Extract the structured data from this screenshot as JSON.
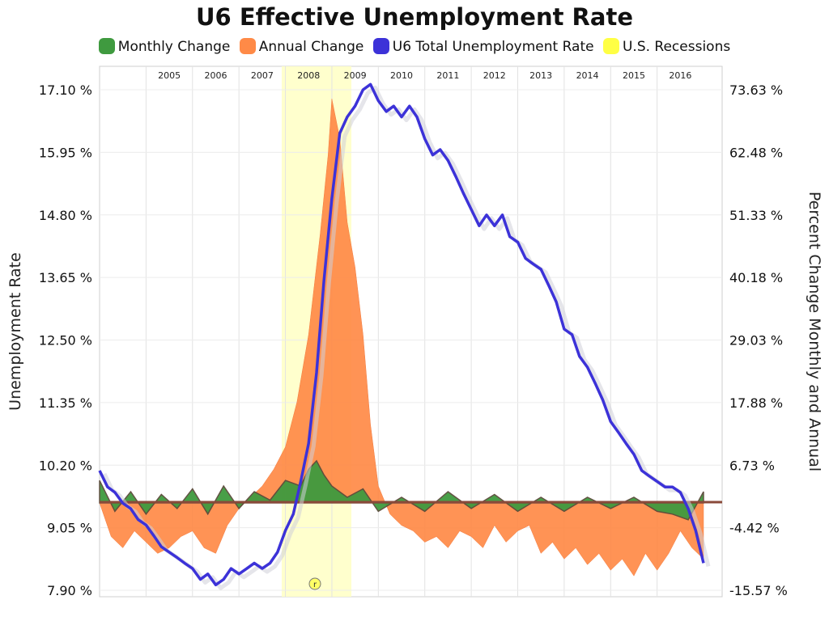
{
  "chart_data": {
    "type": "line",
    "title": "U6 Effective Unemployment Rate",
    "legend_position": "top",
    "legend": [
      {
        "name": "Monthly Change",
        "color": "#3f9a3f"
      },
      {
        "name": "Annual Change",
        "color": "#ff8a47"
      },
      {
        "name": "U6 Total Unemployment Rate",
        "color": "#3c32d8"
      },
      {
        "name": "U.S. Recessions",
        "color": "#ffff44"
      }
    ],
    "ylabel_left": "Unemployment Rate",
    "ylabel_right": "Percent Change Monthly and Annual",
    "left_ticks": [
      "17.10 %",
      "15.95 %",
      "14.80 %",
      "13.65 %",
      "12.50 %",
      "11.35 %",
      "10.20 %",
      "9.05 %",
      "7.90 %"
    ],
    "right_ticks": [
      "73.63 %",
      "62.48 %",
      "51.33 %",
      "40.18 %",
      "29.03 %",
      "17.88 %",
      "6.73 %",
      "-4.42 %",
      "-15.57 %"
    ],
    "ylim_left": [
      7.9,
      17.1
    ],
    "ylim_right": [
      -15.57,
      73.63
    ],
    "x_labels": [
      "2005",
      "2006",
      "2007",
      "2008",
      "2009",
      "2010",
      "2011",
      "2012",
      "2013",
      "2014",
      "2015",
      "2016"
    ],
    "grid": true,
    "recession": {
      "start": 2007.92,
      "end": 2009.42,
      "marker": "r"
    },
    "u6_series": {
      "name": "U6 Total Unemployment Rate",
      "x": [
        2004.0,
        2004.17,
        2004.33,
        2004.5,
        2004.67,
        2004.83,
        2005.0,
        2005.17,
        2005.33,
        2005.5,
        2005.67,
        2005.83,
        2006.0,
        2006.17,
        2006.33,
        2006.5,
        2006.67,
        2006.83,
        2007.0,
        2007.17,
        2007.33,
        2007.5,
        2007.67,
        2007.83,
        2008.0,
        2008.17,
        2008.33,
        2008.5,
        2008.67,
        2008.83,
        2009.0,
        2009.17,
        2009.33,
        2009.5,
        2009.67,
        2009.83,
        2010.0,
        2010.17,
        2010.33,
        2010.5,
        2010.67,
        2010.83,
        2011.0,
        2011.17,
        2011.33,
        2011.5,
        2011.67,
        2011.83,
        2012.0,
        2012.17,
        2012.33,
        2012.5,
        2012.67,
        2012.83,
        2013.0,
        2013.17,
        2013.33,
        2013.5,
        2013.67,
        2013.83,
        2014.0,
        2014.17,
        2014.33,
        2014.5,
        2014.67,
        2014.83,
        2015.0,
        2015.17,
        2015.33,
        2015.5,
        2015.67,
        2015.83,
        2016.0,
        2016.17,
        2016.33,
        2016.5,
        2016.67,
        2016.83,
        2017.0
      ],
      "values": [
        10.1,
        9.8,
        9.7,
        9.5,
        9.4,
        9.2,
        9.1,
        8.9,
        8.7,
        8.6,
        8.5,
        8.4,
        8.3,
        8.1,
        8.2,
        8.0,
        8.1,
        8.3,
        8.2,
        8.3,
        8.4,
        8.3,
        8.4,
        8.6,
        9.0,
        9.3,
        9.9,
        10.6,
        11.9,
        13.6,
        15.1,
        16.3,
        16.6,
        16.8,
        17.1,
        17.2,
        16.9,
        16.7,
        16.8,
        16.6,
        16.8,
        16.6,
        16.2,
        15.9,
        16.0,
        15.8,
        15.5,
        15.2,
        14.9,
        14.6,
        14.8,
        14.6,
        14.8,
        14.4,
        14.3,
        14.0,
        13.9,
        13.8,
        13.5,
        13.2,
        12.7,
        12.6,
        12.2,
        12.0,
        11.7,
        11.4,
        11.0,
        10.8,
        10.6,
        10.4,
        10.1,
        10.0,
        9.9,
        9.8,
        9.8,
        9.7,
        9.4,
        9.0,
        8.4
      ]
    },
    "annual_change_series": {
      "name": "Annual Change",
      "x": [
        2004.0,
        2004.25,
        2004.5,
        2004.75,
        2005.0,
        2005.25,
        2005.5,
        2005.75,
        2006.0,
        2006.25,
        2006.5,
        2006.75,
        2007.0,
        2007.25,
        2007.5,
        2007.75,
        2008.0,
        2008.25,
        2008.5,
        2008.75,
        2008.92,
        2009.0,
        2009.17,
        2009.33,
        2009.5,
        2009.67,
        2009.83,
        2010.0,
        2010.25,
        2010.5,
        2010.75,
        2011.0,
        2011.25,
        2011.5,
        2011.75,
        2012.0,
        2012.25,
        2012.5,
        2012.75,
        2013.0,
        2013.25,
        2013.5,
        2013.75,
        2014.0,
        2014.25,
        2014.5,
        2014.75,
        2015.0,
        2015.25,
        2015.5,
        2015.75,
        2016.0,
        2016.25,
        2016.5,
        2016.75,
        2017.0
      ],
      "values": [
        0.0,
        -6.0,
        -8.0,
        -5.0,
        -7.0,
        -9.0,
        -8.0,
        -6.0,
        -5.0,
        -8.0,
        -9.0,
        -4.0,
        -1.0,
        1.0,
        3.0,
        6.0,
        10.0,
        18.0,
        30.0,
        48.0,
        62.0,
        72.0,
        65.0,
        50.0,
        42.0,
        30.0,
        14.0,
        3.0,
        -2.0,
        -4.0,
        -5.0,
        -7.0,
        -6.0,
        -8.0,
        -5.0,
        -6.0,
        -8.0,
        -4.0,
        -7.0,
        -5.0,
        -4.0,
        -9.0,
        -7.0,
        -10.0,
        -8.0,
        -11.0,
        -9.0,
        -12.0,
        -10.0,
        -13.0,
        -9.0,
        -12.0,
        -9.0,
        -5.0,
        -8.0,
        -10.0
      ]
    },
    "monthly_change_series": {
      "name": "Monthly Change",
      "x": [
        2004.0,
        2004.33,
        2004.67,
        2005.0,
        2005.33,
        2005.67,
        2006.0,
        2006.33,
        2006.67,
        2007.0,
        2007.33,
        2007.67,
        2008.0,
        2008.33,
        2008.5,
        2008.67,
        2008.83,
        2009.0,
        2009.33,
        2009.67,
        2010.0,
        2010.5,
        2011.0,
        2011.5,
        2012.0,
        2012.5,
        2013.0,
        2013.5,
        2014.0,
        2014.5,
        2015.0,
        2015.5,
        2016.0,
        2016.33,
        2016.67,
        2017.0
      ],
      "values": [
        4.0,
        -1.5,
        2.0,
        -2.0,
        1.5,
        -1.0,
        2.5,
        -2.0,
        3.0,
        -1.0,
        2.0,
        0.5,
        4.0,
        3.0,
        6.0,
        7.5,
        5.0,
        3.0,
        1.0,
        2.5,
        -1.5,
        1.0,
        -1.5,
        2.0,
        -1.0,
        1.5,
        -1.5,
        1.0,
        -1.5,
        1.0,
        -1.0,
        1.0,
        -1.5,
        -2.0,
        -3.0,
        2.0
      ]
    }
  }
}
